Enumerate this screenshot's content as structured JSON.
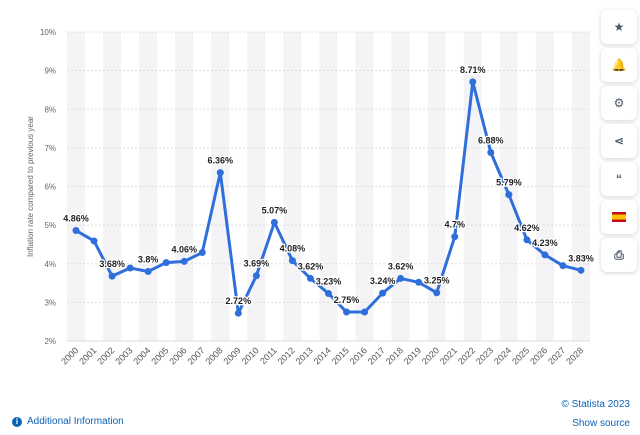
{
  "chart_data": {
    "type": "line",
    "title": "",
    "xlabel": "",
    "ylabel": "Inflation rate compared to previous year",
    "ylim": [
      2,
      10
    ],
    "y_ticks": [
      "2%",
      "3%",
      "4%",
      "5%",
      "6%",
      "7%",
      "8%",
      "9%",
      "10%"
    ],
    "categories": [
      "2000",
      "2001",
      "2002",
      "2003",
      "2004",
      "2005",
      "2006",
      "2007",
      "2008",
      "2009",
      "2010",
      "2011",
      "2012",
      "2013",
      "2014",
      "2015",
      "2016",
      "2017",
      "2018",
      "2019",
      "2020",
      "2021",
      "2022",
      "2023",
      "2024",
      "2025",
      "2026",
      "2027",
      "2028"
    ],
    "values": [
      4.86,
      4.59,
      3.68,
      3.89,
      3.8,
      4.03,
      4.06,
      4.29,
      6.36,
      2.72,
      3.69,
      5.07,
      4.08,
      3.62,
      3.23,
      2.75,
      2.75,
      3.24,
      3.62,
      3.52,
      3.25,
      4.7,
      8.71,
      6.88,
      5.79,
      4.62,
      4.23,
      3.95,
      3.83
    ],
    "data_labels": {
      "0": "4.86%",
      "2": "3.68%",
      "4": "3.8%",
      "6": "4.06%",
      "8": "6.36%",
      "9": "2.72%",
      "10": "3.69%",
      "11": "5.07%",
      "12": "4.08%",
      "13": "3.62%",
      "14": "3.23%",
      "15": "2.75%",
      "17": "3.24%",
      "18": "3.62%",
      "20": "3.25%",
      "21": "4.7%",
      "22": "8.71%",
      "23": "6.88%",
      "24": "5.79%",
      "25": "4.62%",
      "26": "4.23%",
      "28": "3.83%"
    },
    "line_color": "#2f6fdb",
    "grid": true,
    "legend": "none"
  },
  "sidebar": {
    "buttons": [
      {
        "name": "star-icon",
        "glyph": "★"
      },
      {
        "name": "bell-icon",
        "glyph": "🔔"
      },
      {
        "name": "gear-icon",
        "glyph": "⚙"
      },
      {
        "name": "share-icon",
        "glyph": "<"
      },
      {
        "name": "quote-icon",
        "glyph": "“"
      },
      {
        "name": "flag-icon",
        "glyph": ""
      },
      {
        "name": "print-icon",
        "glyph": "⎙"
      }
    ]
  },
  "footer": {
    "additional_info": "Additional Information",
    "copyright": "© Statista 2023",
    "show_source": "Show source"
  }
}
